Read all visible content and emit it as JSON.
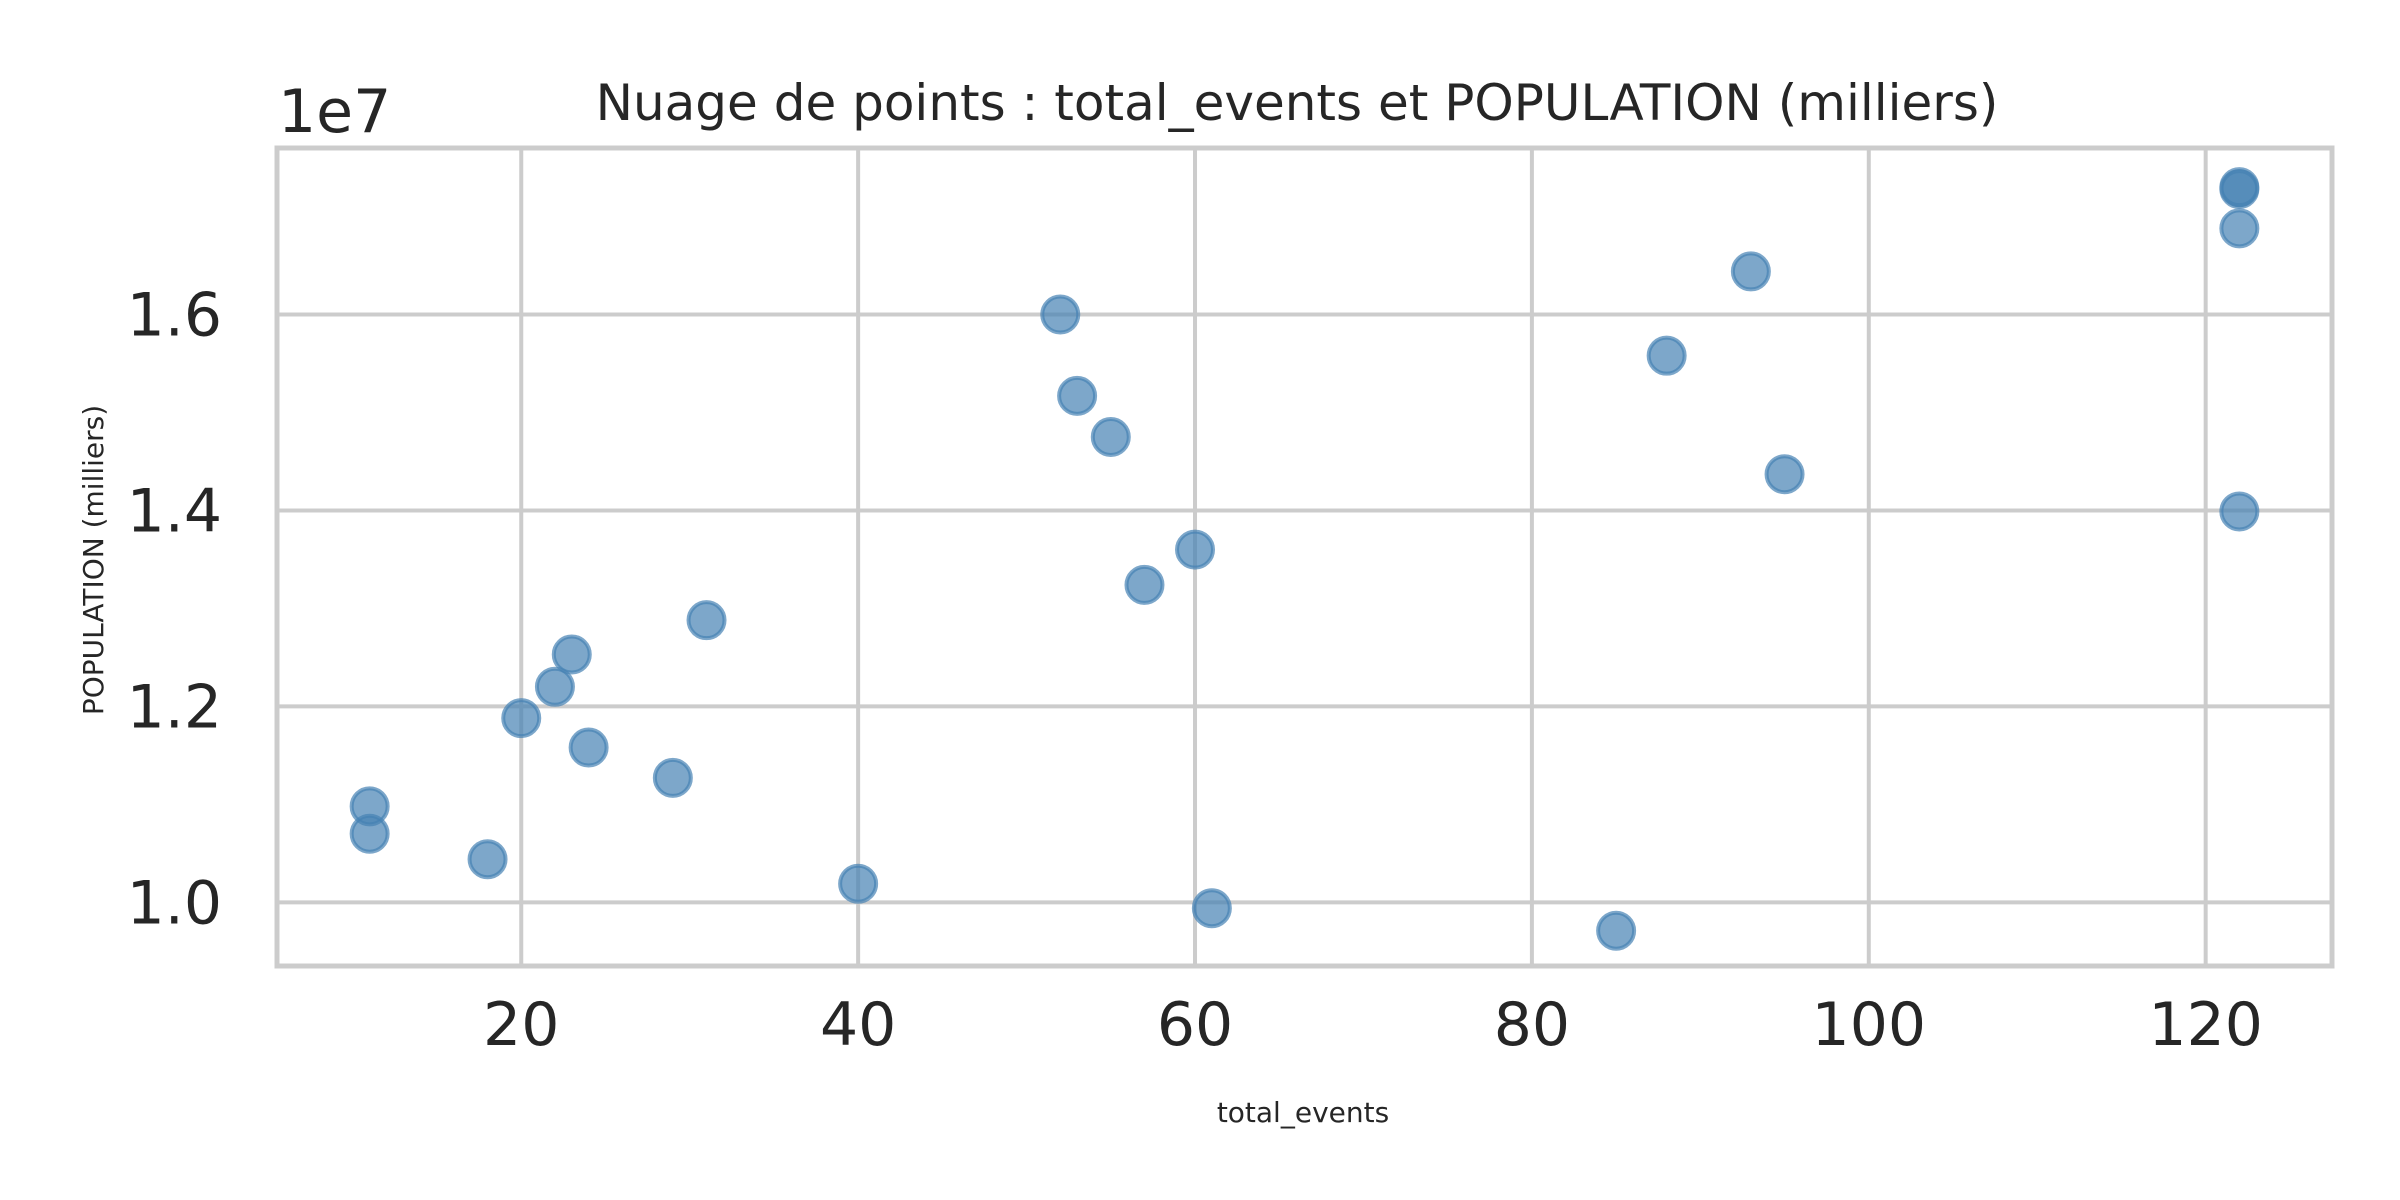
{
  "chart_data": {
    "type": "scatter",
    "title": "Nuage de points : total_events et POPULATION (milliers)",
    "xlabel": "total_events",
    "ylabel": "POPULATION (milliers)",
    "y_offset_label": "1e7",
    "xlim": [
      5.5,
      127.5
    ],
    "ylim": [
      9350000,
      17700000
    ],
    "x_ticks": [
      20,
      40,
      60,
      80,
      100,
      120
    ],
    "x_tick_labels": [
      "20",
      "40",
      "60",
      "80",
      "100",
      "120"
    ],
    "y_ticks": [
      10000000,
      12000000,
      14000000,
      16000000
    ],
    "y_tick_labels": [
      "1.0",
      "1.2",
      "1.4",
      "1.6"
    ],
    "grid": true,
    "marker_color": "#4682b4",
    "marker_opacity": 0.7,
    "points": [
      {
        "x": 11,
        "y": 10980000
      },
      {
        "x": 11,
        "y": 10700000
      },
      {
        "x": 18,
        "y": 10440000
      },
      {
        "x": 20,
        "y": 11880000
      },
      {
        "x": 22,
        "y": 12200000
      },
      {
        "x": 23,
        "y": 12530000
      },
      {
        "x": 24,
        "y": 11580000
      },
      {
        "x": 29,
        "y": 11270000
      },
      {
        "x": 31,
        "y": 12880000
      },
      {
        "x": 40,
        "y": 10190000
      },
      {
        "x": 52,
        "y": 16000000
      },
      {
        "x": 53,
        "y": 15170000
      },
      {
        "x": 55,
        "y": 14750000
      },
      {
        "x": 57,
        "y": 13240000
      },
      {
        "x": 60,
        "y": 13600000
      },
      {
        "x": 61,
        "y": 9940000
      },
      {
        "x": 85,
        "y": 9710000
      },
      {
        "x": 88,
        "y": 15580000
      },
      {
        "x": 93,
        "y": 16440000
      },
      {
        "x": 95,
        "y": 14370000
      },
      {
        "x": 122,
        "y": 17300000
      },
      {
        "x": 122,
        "y": 17280000
      },
      {
        "x": 122,
        "y": 16880000
      },
      {
        "x": 122,
        "y": 13990000
      }
    ]
  }
}
